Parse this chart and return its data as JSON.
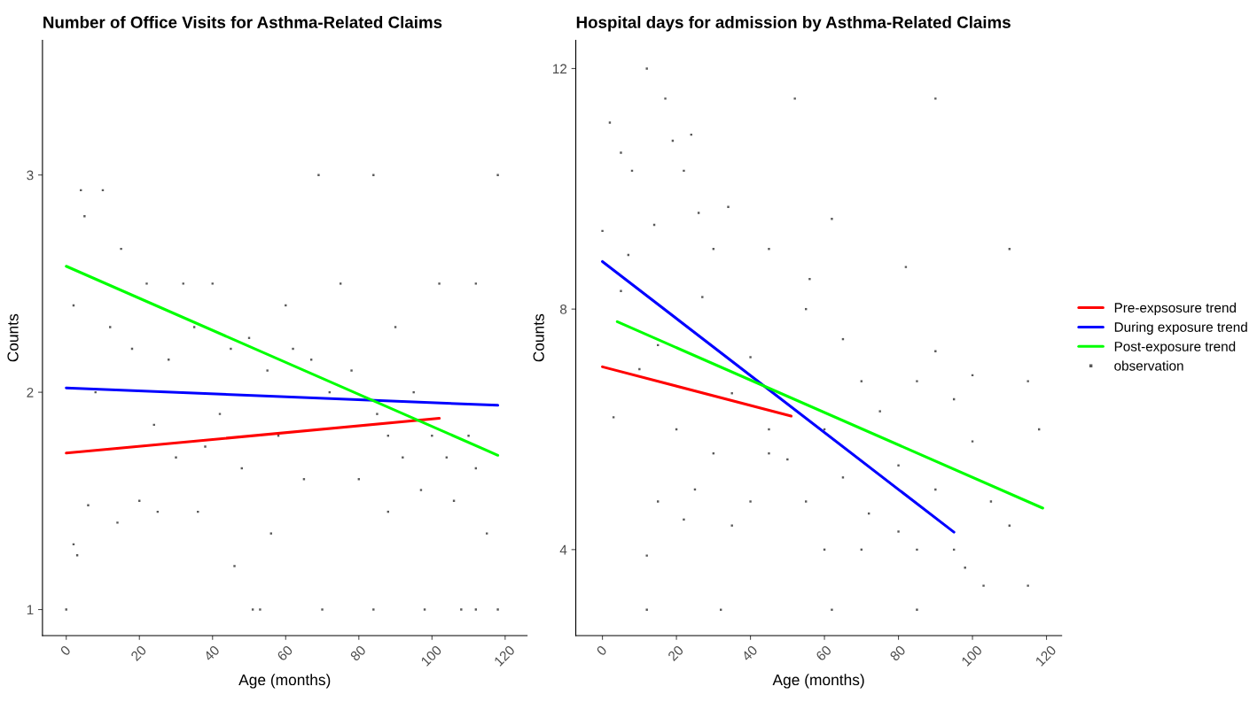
{
  "chart_data": [
    {
      "type": "line",
      "title": "Number of Office Visits for Asthma-Related Claims",
      "xlabel": "Age (months)",
      "ylabel": "Counts",
      "xlim": [
        -6.5,
        126
      ],
      "xticks": [
        0,
        20,
        40,
        60,
        80,
        100,
        120
      ],
      "ylim": [
        0.88,
        3.62
      ],
      "yticks": [
        1,
        2,
        3
      ],
      "grid": false,
      "legend": false,
      "series": [
        {
          "color": "#ff0000",
          "x": [
            0,
            102
          ],
          "values": [
            1.72,
            1.88
          ]
        },
        {
          "color": "#0000ff",
          "x": [
            0,
            118
          ],
          "values": [
            2.02,
            1.94
          ]
        },
        {
          "color": "#00ff00",
          "x": [
            0,
            118
          ],
          "values": [
            2.58,
            1.71
          ]
        },
        {
          "type": "scatter",
          "color": "#595959",
          "x": [
            0,
            2,
            4,
            5,
            10,
            8,
            12,
            15,
            18,
            20,
            22,
            25,
            28,
            30,
            32,
            35,
            38,
            40,
            42,
            45,
            46,
            48,
            50,
            51,
            53,
            55,
            58,
            60,
            62,
            65,
            67,
            69,
            70,
            72,
            75,
            78,
            80,
            84,
            85,
            88,
            90,
            92,
            95,
            98,
            100,
            102,
            104,
            106,
            108,
            110,
            112,
            115,
            118,
            118,
            2,
            3,
            6,
            14,
            24,
            36,
            56,
            88,
            97,
            112,
            84,
            112
          ],
          "values": [
            1.0,
            2.4,
            2.93,
            2.81,
            2.93,
            2.0,
            2.3,
            2.66,
            2.2,
            1.5,
            2.5,
            1.45,
            2.15,
            1.7,
            2.5,
            2.3,
            1.75,
            2.5,
            1.9,
            2.2,
            1.2,
            1.65,
            2.25,
            1.0,
            1.0,
            2.1,
            1.8,
            2.4,
            2.2,
            1.6,
            2.15,
            3.0,
            1.0,
            2.0,
            2.5,
            2.1,
            1.6,
            3.0,
            1.9,
            1.8,
            2.3,
            1.7,
            2.0,
            1.0,
            1.8,
            2.5,
            1.7,
            1.5,
            1.0,
            1.8,
            1.65,
            1.35,
            3.0,
            1.0,
            1.3,
            1.25,
            1.48,
            1.4,
            1.85,
            1.45,
            1.35,
            1.45,
            1.55,
            2.5,
            1.0,
            1.0
          ]
        }
      ]
    },
    {
      "type": "line",
      "title": "Hospital days for admission by Asthma-Related Claims",
      "xlabel": "Age (months)",
      "ylabel": "Counts",
      "xlim": [
        -7.2,
        124.1
      ],
      "xticks": [
        0,
        20,
        40,
        60,
        80,
        100,
        120
      ],
      "ylim": [
        2.57,
        12.47
      ],
      "yticks": [
        4,
        8,
        12
      ],
      "grid": false,
      "legend": "right",
      "series": [
        {
          "name": "Pre-expsosure trend",
          "color": "#ff0000",
          "x": [
            0,
            51
          ],
          "values": [
            7.04,
            6.22
          ]
        },
        {
          "name": "During exposure trend",
          "color": "#0000ff",
          "x": [
            0,
            95
          ],
          "values": [
            8.79,
            4.29
          ]
        },
        {
          "name": "Post-exposure trend",
          "color": "#00ff00",
          "x": [
            4,
            119
          ],
          "values": [
            7.79,
            4.69
          ]
        },
        {
          "type": "scatter",
          "name": "observation",
          "color": "#595959",
          "x": [
            2,
            12,
            8,
            17,
            19,
            24,
            22,
            5,
            0,
            14,
            26,
            52,
            90,
            34,
            62,
            45,
            7,
            30,
            56,
            82,
            110,
            5,
            27,
            55,
            15,
            40,
            65,
            90,
            100,
            10,
            35,
            70,
            85,
            115,
            20,
            45,
            60,
            75,
            95,
            118,
            3,
            30,
            50,
            65,
            80,
            100,
            25,
            40,
            55,
            72,
            90,
            105,
            15,
            35,
            80,
            110,
            70,
            85,
            95,
            12,
            60,
            98,
            103,
            115,
            12,
            32,
            62,
            85,
            22,
            45
          ],
          "values": [
            11.1,
            12.0,
            10.3,
            11.5,
            10.8,
            10.9,
            10.3,
            10.6,
            9.3,
            9.4,
            9.6,
            11.5,
            11.5,
            9.7,
            9.5,
            9.0,
            8.9,
            9.0,
            8.5,
            8.7,
            9.0,
            8.3,
            8.2,
            8.0,
            7.4,
            7.2,
            7.5,
            7.3,
            6.9,
            7.0,
            6.6,
            6.8,
            6.8,
            6.8,
            6.0,
            6.0,
            6.0,
            6.3,
            6.5,
            6.0,
            6.2,
            5.6,
            5.5,
            5.2,
            5.4,
            5.8,
            5.0,
            4.8,
            4.8,
            4.6,
            5.0,
            4.8,
            4.8,
            4.4,
            4.3,
            4.4,
            4.0,
            4.0,
            4.0,
            3.9,
            4.0,
            3.7,
            3.4,
            3.4,
            3.0,
            3.0,
            3.0,
            3.0,
            4.5,
            5.6
          ]
        }
      ]
    }
  ]
}
